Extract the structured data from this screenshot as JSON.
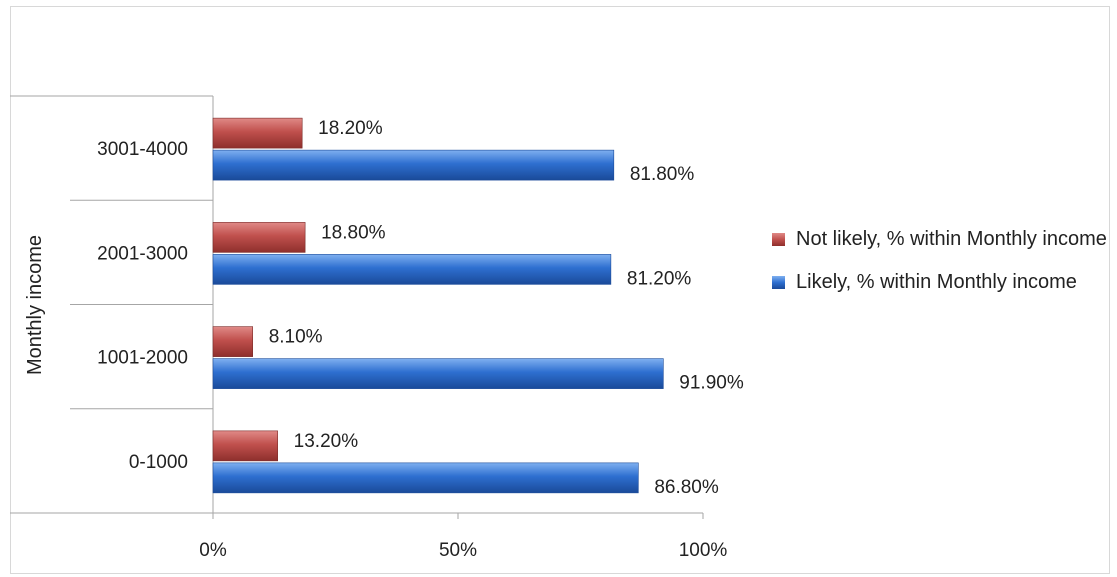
{
  "chart_data": {
    "type": "bar",
    "orientation": "horizontal",
    "title": "",
    "ylabel": "Monthly income",
    "xlabel": "",
    "categories": [
      "0-1000",
      "1001-2000",
      "2001-3000",
      "3001-4000"
    ],
    "series": [
      {
        "name": "Not likely, % within Monthly income",
        "color": "#c0504d",
        "values": [
          13.2,
          8.1,
          18.8,
          18.2
        ],
        "labels": [
          "13.20%",
          "8.10%",
          "18.80%",
          "18.20%"
        ]
      },
      {
        "name": "Likely, % within Monthly income",
        "color": "#2e6fd0",
        "values": [
          86.8,
          91.9,
          81.2,
          81.8
        ],
        "labels": [
          "86.80%",
          "91.90%",
          "81.20%",
          "81.80%"
        ]
      }
    ],
    "xlim": [
      0,
      100
    ],
    "xticks": [
      "0%",
      "50%",
      "100%"
    ],
    "grid": false,
    "legend_position": "right"
  }
}
